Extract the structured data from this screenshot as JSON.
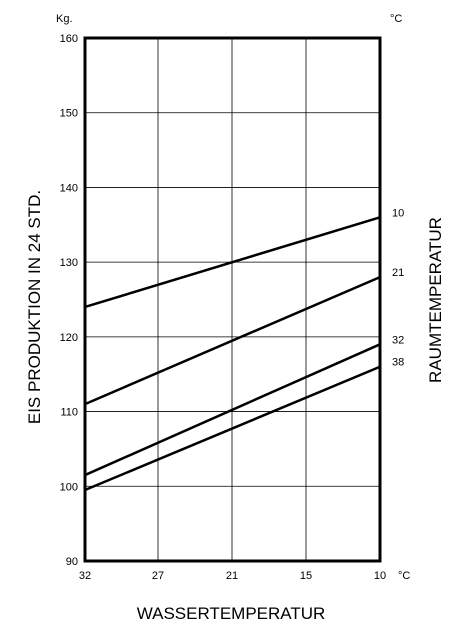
{
  "chart_data": {
    "type": "line",
    "y_unit": "Kg.",
    "x_unit": "°C",
    "right_unit": "°C",
    "ylabel": "EIS PRODUKTION IN 24 STD.",
    "xlabel": "WASSERTEMPERATUR",
    "right_label": "RAUMTEMPERATUR",
    "xlim": [
      32,
      10
    ],
    "ylim": [
      90,
      160
    ],
    "x_ticks": [
      "32",
      "27",
      "21",
      "15",
      "10"
    ],
    "y_ticks": [
      "90",
      "100",
      "110",
      "120",
      "130",
      "140",
      "150",
      "160"
    ],
    "grid": true,
    "series": [
      {
        "name": "10",
        "x": [
          32,
          10
        ],
        "y": [
          124,
          136
        ]
      },
      {
        "name": "21",
        "x": [
          32,
          10
        ],
        "y": [
          111,
          128
        ]
      },
      {
        "name": "32",
        "x": [
          32,
          10
        ],
        "y": [
          101.5,
          119
        ]
      },
      {
        "name": "38",
        "x": [
          32,
          10
        ],
        "y": [
          99.5,
          116
        ]
      }
    ]
  }
}
